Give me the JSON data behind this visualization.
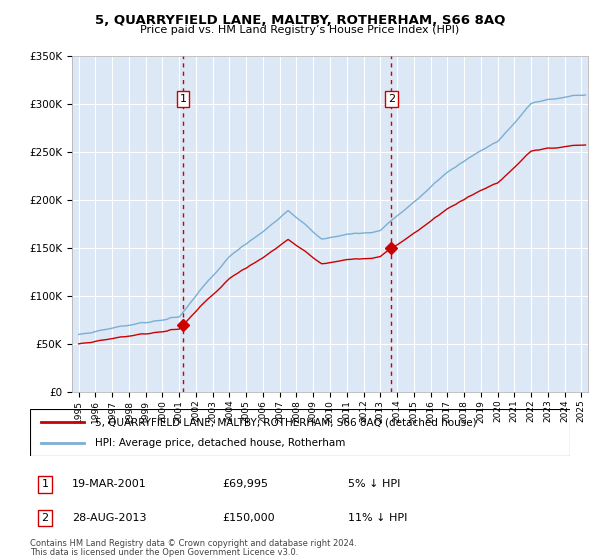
{
  "title": "5, QUARRYFIELD LANE, MALTBY, ROTHERHAM, S66 8AQ",
  "subtitle": "Price paid vs. HM Land Registry’s House Price Index (HPI)",
  "legend_line1": "5, QUARRYFIELD LANE, MALTBY, ROTHERHAM, S66 8AQ (detached house)",
  "legend_line2": "HPI: Average price, detached house, Rotherham",
  "sale1_label": "1",
  "sale1_date": "19-MAR-2001",
  "sale1_price": "£69,995",
  "sale1_hpi": "5% ↓ HPI",
  "sale1_year": 2001.22,
  "sale1_value": 69995,
  "sale2_label": "2",
  "sale2_date": "28-AUG-2013",
  "sale2_price": "£150,000",
  "sale2_hpi": "11% ↓ HPI",
  "sale2_year": 2013.67,
  "sale2_value": 150000,
  "ylim": [
    0,
    350000
  ],
  "yticks": [
    0,
    50000,
    100000,
    150000,
    200000,
    250000,
    300000,
    350000
  ],
  "ytick_labels": [
    "£0",
    "£50K",
    "£100K",
    "£150K",
    "£200K",
    "£250K",
    "£300K",
    "£350K"
  ],
  "plot_bg": "#dce8f5",
  "outer_bg": "#ffffff",
  "grid_color": "#ffffff",
  "line_color_red": "#cc0000",
  "line_color_blue": "#7aafd4",
  "vline_color": "#cc0000",
  "footnote1": "Contains HM Land Registry data © Crown copyright and database right 2024.",
  "footnote2": "This data is licensed under the Open Government Licence v3.0."
}
